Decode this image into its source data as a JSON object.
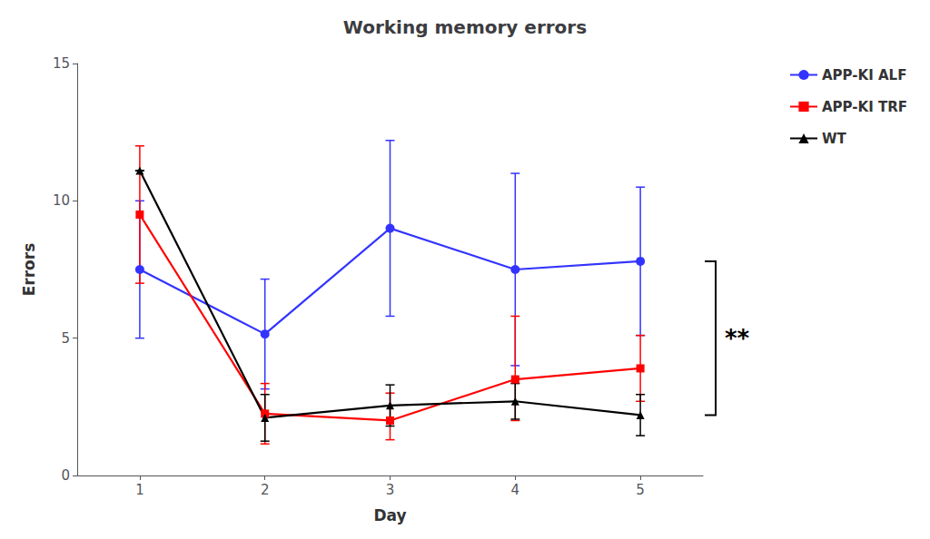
{
  "chart_data": {
    "type": "line",
    "title": "Working memory errors",
    "xlabel": "Day",
    "ylabel": "Errors",
    "x": [
      1,
      2,
      3,
      4,
      5
    ],
    "series": [
      {
        "name": "APP-KI ALF",
        "color": "#3333FF",
        "marker": "circle",
        "values": [
          7.5,
          5.15,
          9.0,
          7.5,
          7.8
        ],
        "error_minus": [
          2.5,
          2.0,
          3.2,
          3.5,
          2.7
        ],
        "error_plus": [
          2.5,
          2.0,
          3.2,
          3.5,
          2.7
        ]
      },
      {
        "name": "APP-KI TRF",
        "color": "#FF0000",
        "marker": "square",
        "values": [
          9.5,
          2.25,
          2.0,
          3.5,
          3.9
        ],
        "error_minus": [
          2.5,
          1.1,
          0.7,
          1.5,
          1.2
        ],
        "error_plus": [
          2.5,
          1.1,
          1.0,
          2.3,
          1.2
        ]
      },
      {
        "name": "WT",
        "color": "#000000",
        "marker": "triangle",
        "values": [
          11.1,
          2.1,
          2.55,
          2.7,
          2.2
        ],
        "error_minus": [
          0.0,
          0.85,
          0.75,
          0.65,
          0.75
        ],
        "error_plus": [
          0.0,
          0.85,
          0.75,
          0.65,
          0.75
        ]
      }
    ],
    "xlim": [
      0.5,
      5.5
    ],
    "xticks": [
      1,
      2,
      3,
      4,
      5
    ],
    "ylim": [
      0,
      15
    ],
    "yticks": [
      0,
      5,
      10,
      15
    ],
    "grid": false,
    "legend": "right",
    "annotations": [
      {
        "text": "**",
        "y": [
          2.2,
          7.8
        ]
      }
    ]
  }
}
